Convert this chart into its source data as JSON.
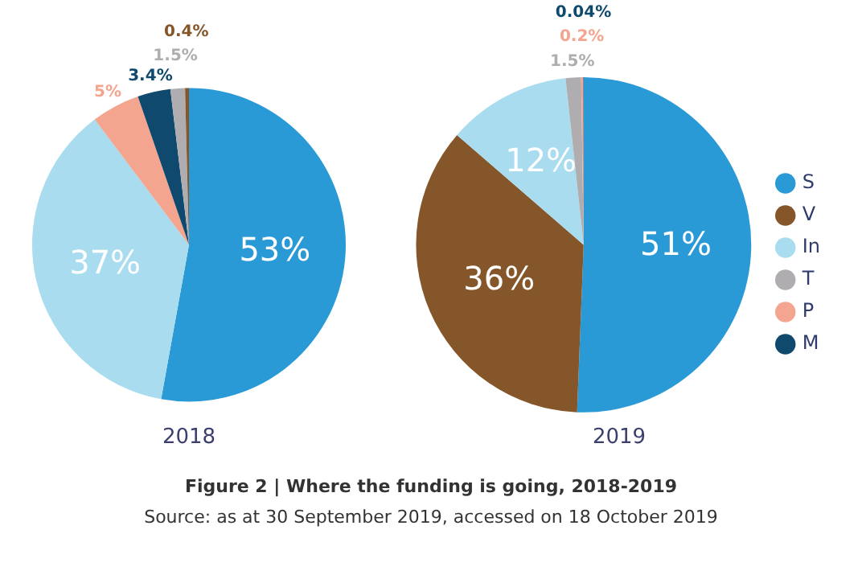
{
  "chart_data": [
    {
      "type": "pie",
      "title": "2018",
      "categories": [
        null,
        null,
        null,
        null,
        null,
        null
      ],
      "values": [
        53,
        37,
        5,
        3.4,
        1.5,
        0.4
      ],
      "value_labels": [
        "53%",
        "37%",
        "5%",
        "3.4%",
        "1.5%",
        "0.4%"
      ],
      "colors": [
        "#2a9ad6",
        "#a8dcee",
        "#f4a590",
        "#0f4a6e",
        "#b0adb0",
        "#85562a"
      ],
      "legend": false
    },
    {
      "type": "pie",
      "title": "2019",
      "categories": [
        "S",
        "V",
        "In",
        "T",
        "P",
        "M"
      ],
      "values": [
        51,
        36,
        12,
        1.5,
        0.2,
        0.04
      ],
      "value_labels": [
        "51%",
        "36%",
        "12%",
        "1.5%",
        "0.2%",
        "0.04%"
      ],
      "colors": [
        "#2a9ad6",
        "#85562a",
        "#a8dcee",
        "#b0adb0",
        "#f4a590",
        "#0f4a6e"
      ],
      "legend": "right",
      "annotations": [
        "Figure 2 | Where the funding is going, 2018-2019",
        "Source: as at 30 September 2019, accessed on 18 October 2019"
      ]
    }
  ]
}
